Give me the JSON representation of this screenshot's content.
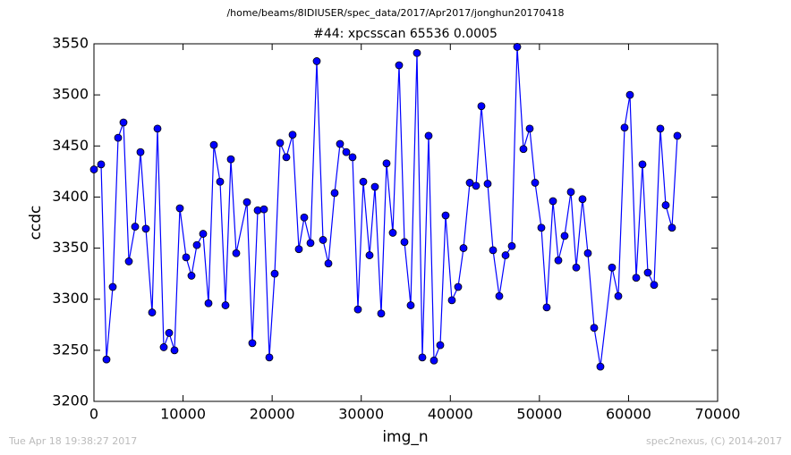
{
  "chart_data": {
    "type": "line",
    "suptitle": "/home/beams/8IDIUSER/spec_data/2017/Apr2017/jonghun20170418",
    "title": "#44: xpcsscan 65536 0.0005",
    "xlabel": "img_n",
    "ylabel": "ccdc",
    "footer_left": "Tue Apr 18 19:38:27 2017",
    "footer_right": "spec2nexus, (C) 2014-2017",
    "x": [
      0,
      803,
      1406,
      2109,
      2712,
      3314,
      3917,
      4620,
      5222,
      5825,
      6528,
      7131,
      7834,
      8436,
      9039,
      9641,
      10344,
      10947,
      11549,
      12252,
      12855,
      13458,
      14161,
      14763,
      15366,
      15968,
      17174,
      17776,
      18379,
      19082,
      19684,
      20287,
      20889,
      21592,
      22295,
      22998,
      23601,
      24304,
      25007,
      25710,
      26313,
      27016,
      27618,
      28321,
      29024,
      29627,
      30229,
      30932,
      31535,
      32238,
      32840,
      33543,
      34246,
      34849,
      35552,
      36255,
      36858,
      37561,
      38163,
      38866,
      39469,
      40172,
      40875,
      41478,
      42181,
      42884,
      43486,
      44189,
      44792,
      45495,
      46198,
      46901,
      47503,
      48206,
      48909,
      49512,
      50215,
      50817,
      51520,
      52123,
      52826,
      53529,
      54131,
      54834,
      55437,
      56140,
      56843,
      58148,
      58851,
      59554,
      60157,
      60860,
      61563,
      62166,
      62869,
      63572,
      64174,
      64877,
      65480
    ],
    "series": [
      {
        "name": "ccdc",
        "color": "#0000ff",
        "values": [
          3427,
          3432,
          3241,
          3312,
          3458,
          3473,
          3337,
          3371,
          3444,
          3369,
          3287,
          3467,
          3253,
          3267,
          3250,
          3389,
          3341,
          3323,
          3353,
          3364,
          3296,
          3451,
          3415,
          3294,
          3437,
          3345,
          3395,
          3257,
          3387,
          3388,
          3243,
          3325,
          3453,
          3439,
          3461,
          3349,
          3380,
          3355,
          3533,
          3358,
          3335,
          3404,
          3452,
          3444,
          3439,
          3290,
          3415,
          3343,
          3410,
          3286,
          3433,
          3365,
          3529,
          3356,
          3294,
          3541,
          3243,
          3460,
          3240,
          3255,
          3382,
          3299,
          3312,
          3350,
          3414,
          3411,
          3489,
          3413,
          3348,
          3303,
          3343,
          3352,
          3547,
          3447,
          3467,
          3414,
          3370,
          3292,
          3396,
          3338,
          3362,
          3405,
          3331,
          3398,
          3345,
          3272,
          3234,
          3331,
          3303,
          3468,
          3500,
          3321,
          3432,
          3326,
          3314,
          3467,
          3392,
          3370,
          3460
        ]
      }
    ],
    "xlim": [
      0,
      70000
    ],
    "xticks": [
      0,
      10000,
      20000,
      30000,
      40000,
      50000,
      60000,
      70000
    ],
    "ylim": [
      3200,
      3550
    ],
    "yticks": [
      3200,
      3250,
      3300,
      3350,
      3400,
      3450,
      3500,
      3550
    ],
    "grid": false
  }
}
